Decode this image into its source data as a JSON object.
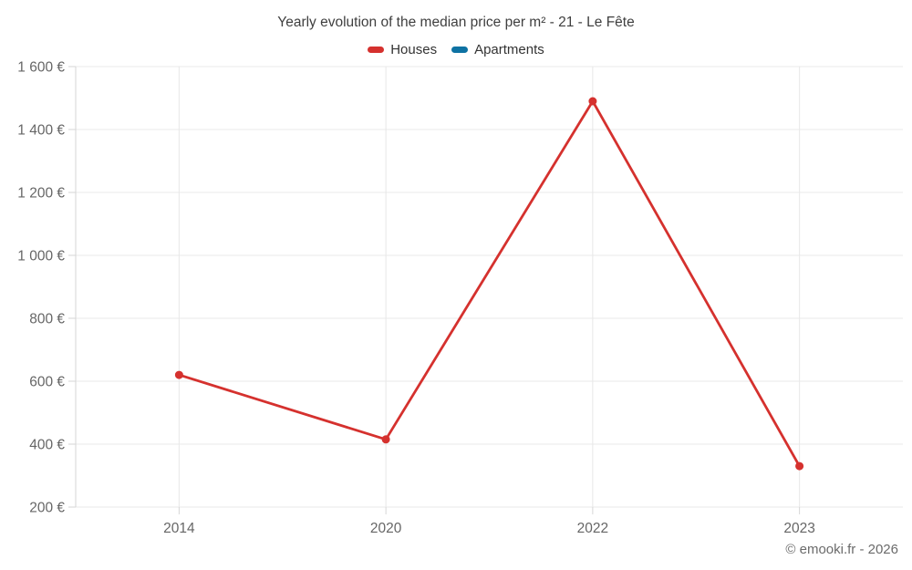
{
  "title": "Yearly evolution of the median price per m² - 21 - Le Fête",
  "legend": {
    "items": [
      {
        "label": "Houses",
        "color": "#d5312e"
      },
      {
        "label": "Apartments",
        "color": "#0e72a3"
      }
    ]
  },
  "chart_data": {
    "type": "line",
    "title": "Yearly evolution of the median price per m² - 21 - Le Fête",
    "categories": [
      "2014",
      "2020",
      "2022",
      "2023"
    ],
    "series": [
      {
        "name": "Houses",
        "color": "#d5312e",
        "values": [
          620,
          415,
          1490,
          330
        ]
      },
      {
        "name": "Apartments",
        "color": "#0e72a3",
        "values": []
      }
    ],
    "ylim": [
      200,
      1600
    ],
    "yticks": [
      {
        "value": 200,
        "label": "200 €"
      },
      {
        "value": 400,
        "label": "400 €"
      },
      {
        "value": 600,
        "label": "600 €"
      },
      {
        "value": 800,
        "label": "800 €"
      },
      {
        "value": 1000,
        "label": "1 000 €"
      },
      {
        "value": 1200,
        "label": "1 200 €"
      },
      {
        "value": 1400,
        "label": "1 400 €"
      },
      {
        "value": 1600,
        "label": "1 600 €"
      }
    ],
    "grid": true,
    "legend_position": "top"
  },
  "footer": {
    "copyright": "© emooki.fr - 2026"
  },
  "colors": {
    "background": "#ffffff",
    "grid": "#e8e8e8",
    "axis": "#d6d6d6",
    "tick_label": "#666666",
    "title": "#3f3f3f",
    "legend_text": "#333333",
    "copyright": "#6b6b6b"
  }
}
